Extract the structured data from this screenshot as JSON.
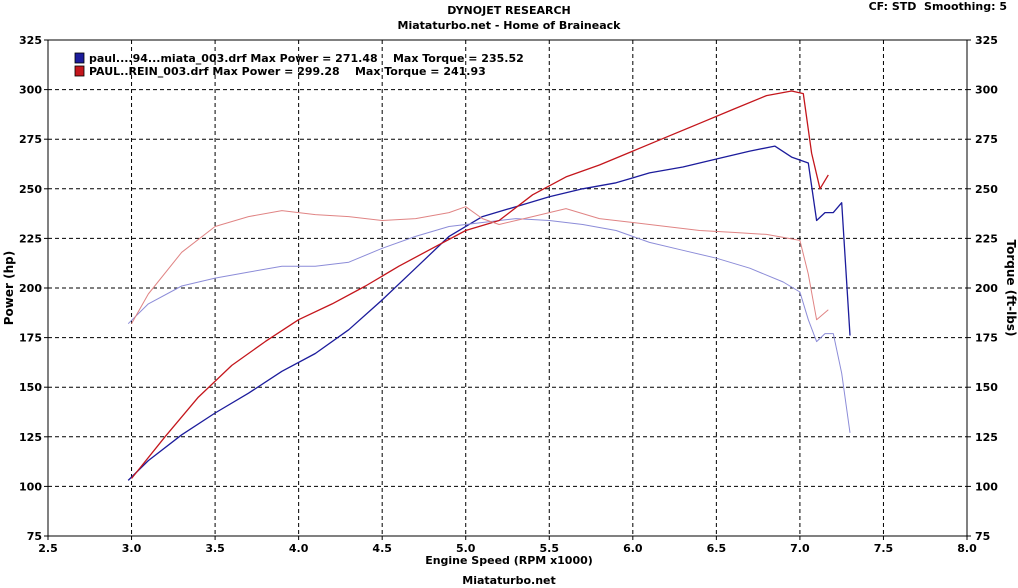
{
  "header": {
    "title": "DYNOJET RESEARCH",
    "subtitle": "Miataturbo.net - Home of Braineack",
    "settings": "CF: STD  Smoothing: 5",
    "footer": "Miataturbo.net"
  },
  "chart_data": {
    "type": "line",
    "title": "DYNOJET RESEARCH",
    "subtitle": "Miataturbo.net - Home of Braineack",
    "xlabel": "Engine Speed (RPM x1000)",
    "ylabel_left": "Power (hp)",
    "ylabel_right": "Torque (ft-lbs)",
    "xlim": [
      2.5,
      8.0
    ],
    "ylim": [
      75,
      325
    ],
    "x_ticks": [
      "2.5",
      "3.0",
      "3.5",
      "4.0",
      "4.5",
      "5.0",
      "5.5",
      "6.0",
      "6.5",
      "7.0",
      "7.5",
      "8.0"
    ],
    "y_ticks": [
      "325",
      "300",
      "275",
      "250",
      "225",
      "200",
      "175",
      "150",
      "125",
      "100",
      "75"
    ],
    "grid": true,
    "legend": [
      {
        "label": "paul....94...miata_003.drf Max Power = 271.48    Max Torque = 235.52",
        "color": "#1c1c9c"
      },
      {
        "label": "PAUL..REIN_003.drf Max Power = 299.28    Max Torque = 241.93",
        "color": "#c4161c"
      }
    ],
    "series": [
      {
        "name": "paul....94...miata_003 Power",
        "color": "#1c1c9c",
        "kind": "power",
        "x": [
          2.98,
          3.1,
          3.3,
          3.5,
          3.7,
          3.9,
          4.1,
          4.3,
          4.5,
          4.7,
          4.9,
          5.1,
          5.3,
          5.5,
          5.7,
          5.9,
          6.1,
          6.3,
          6.5,
          6.7,
          6.85,
          6.95,
          7.05,
          7.1,
          7.15,
          7.2,
          7.25,
          7.3
        ],
        "y": [
          103,
          113,
          126,
          137,
          147,
          158,
          167,
          179,
          194,
          210,
          226,
          236,
          241,
          246,
          250,
          253,
          258,
          261,
          265,
          269,
          271.5,
          266,
          263,
          234,
          238,
          238,
          243,
          176
        ]
      },
      {
        "name": "paul....94...miata_003 Torque",
        "color": "#8c8cd8",
        "kind": "torque",
        "x": [
          2.98,
          3.1,
          3.3,
          3.5,
          3.7,
          3.9,
          4.1,
          4.3,
          4.5,
          4.7,
          4.9,
          5.1,
          5.3,
          5.5,
          5.7,
          5.9,
          6.1,
          6.3,
          6.5,
          6.7,
          6.9,
          7.0,
          7.05,
          7.1,
          7.15,
          7.2,
          7.25,
          7.3
        ],
        "y": [
          182,
          192,
          201,
          205,
          208,
          211,
          211,
          213,
          220,
          226,
          231,
          233,
          235,
          234,
          232,
          229,
          223,
          219,
          215,
          210,
          203,
          198,
          184,
          173,
          177,
          177,
          157,
          127
        ]
      },
      {
        "name": "PAUL..REIN_003 Power",
        "color": "#c4161c",
        "kind": "power",
        "x": [
          3.0,
          3.2,
          3.4,
          3.6,
          3.8,
          4.0,
          4.2,
          4.4,
          4.6,
          4.8,
          5.0,
          5.2,
          5.4,
          5.6,
          5.8,
          6.0,
          6.2,
          6.4,
          6.6,
          6.8,
          6.95,
          7.02,
          7.07,
          7.12,
          7.17
        ],
        "y": [
          104,
          125,
          145,
          161,
          173,
          184,
          192,
          201,
          211,
          220,
          229,
          234,
          247,
          256,
          262,
          269,
          276,
          283,
          290,
          297,
          299.3,
          298,
          268,
          250,
          257
        ]
      },
      {
        "name": "PAUL..REIN_003 Torque",
        "color": "#e08484",
        "kind": "torque",
        "x": [
          3.0,
          3.1,
          3.3,
          3.5,
          3.7,
          3.9,
          4.1,
          4.3,
          4.5,
          4.7,
          4.9,
          5.0,
          5.1,
          5.2,
          5.4,
          5.6,
          5.8,
          6.0,
          6.2,
          6.4,
          6.6,
          6.8,
          7.0,
          7.05,
          7.1,
          7.17
        ],
        "y": [
          182,
          197,
          218,
          231,
          236,
          239,
          237,
          236,
          234,
          235,
          238,
          241,
          235,
          232,
          236,
          240,
          235,
          233,
          231,
          229,
          228,
          227,
          224,
          207,
          184,
          189
        ]
      }
    ]
  }
}
